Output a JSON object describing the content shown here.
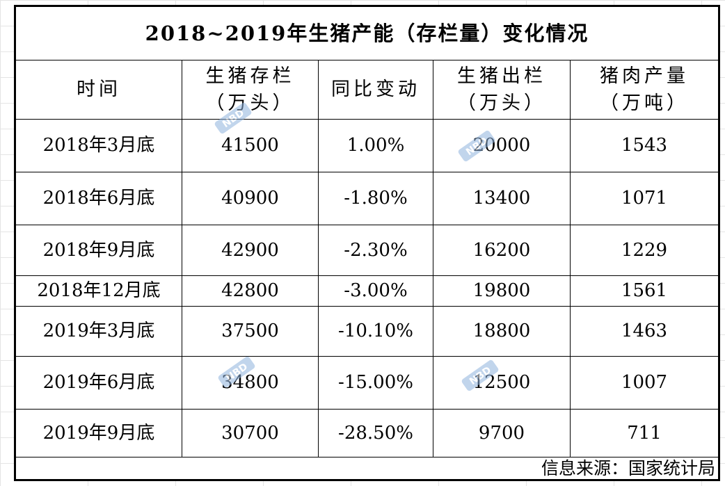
{
  "title": "2018~2019年生猪产能（存栏量）变化情况",
  "headers": [
    [
      "时间"
    ],
    [
      "生猪存栏",
      "（万头）"
    ],
    [
      "同比变动"
    ],
    [
      "生猪出栏",
      "（万头）"
    ],
    [
      "猪肉产量",
      "（万吨）"
    ]
  ],
  "rows": [
    [
      "2018年3月底",
      "41500",
      "1.00%",
      "20000",
      "1543"
    ],
    [
      "2018年6月底",
      "40900",
      "-1.80%",
      "13400",
      "1071"
    ],
    [
      "2018年9月底",
      "42900",
      "-2.30%",
      "16200",
      "1229"
    ],
    [
      "2018年12月底",
      "42800",
      "-3.00%",
      "19800",
      "1561"
    ],
    [
      "2019年3月底",
      "37500",
      "-10.10%",
      "18800",
      "1463"
    ],
    [
      "2019年6月底",
      "34800",
      "-15.00%",
      "12500",
      "1007"
    ],
    [
      "2019年9月底",
      "30700",
      "-28.50%",
      "9700",
      "711"
    ]
  ],
  "source": "信息来源：国家统计局",
  "watermark": {
    "text": "NBD",
    "color": "#7fa6d6",
    "icon": "nbd-watermark-icon"
  }
}
